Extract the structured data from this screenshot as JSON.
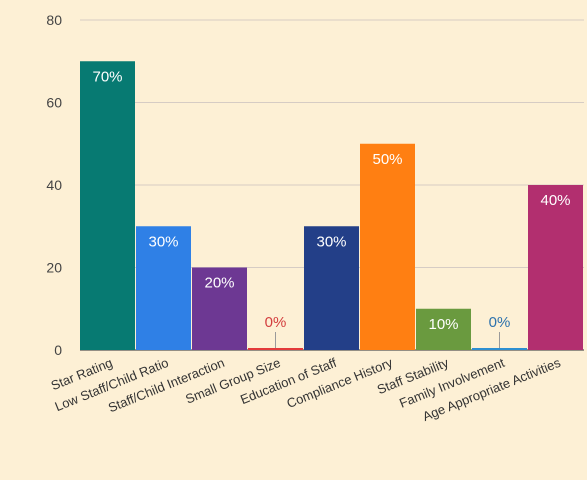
{
  "chart_data": {
    "type": "bar",
    "categories": [
      "Star Rating",
      "Low Staff/Child Ratio",
      "Staff/Child Interaction",
      "Small Group Size",
      "Education of Staff",
      "Compliance History",
      "Staff Stability",
      "Family Involvement",
      "Age Appropriate Activities"
    ],
    "values": [
      70,
      30,
      20,
      0,
      30,
      50,
      10,
      0,
      40
    ],
    "data_labels": [
      "70%",
      "30%",
      "20%",
      "0%",
      "30%",
      "50%",
      "10%",
      "0%",
      "40%"
    ],
    "colors": [
      "#077a72",
      "#2f80e6",
      "#6d3893",
      "#e33a3a",
      "#233f88",
      "#ff7f12",
      "#6a9a3f",
      "#2d8fd1",
      "#b22f6f"
    ],
    "label_colors": [
      "#ffffff",
      "#ffffff",
      "#ffffff",
      "#d33e3e",
      "#ffffff",
      "#ffffff",
      "#ffffff",
      "#2d72ad",
      "#ffffff"
    ],
    "y_ticks": [
      "0",
      "20",
      "40",
      "60",
      "80"
    ],
    "ylim": [
      0,
      80
    ],
    "grid": true,
    "legend": "none",
    "title": "",
    "xlabel": "",
    "ylabel": ""
  }
}
